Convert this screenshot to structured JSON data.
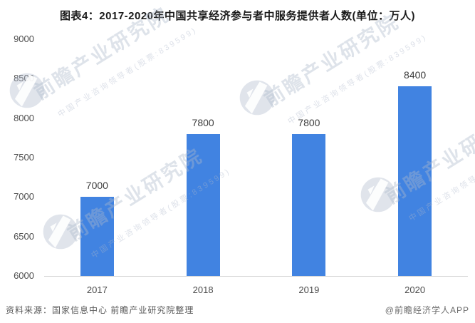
{
  "title": "图表4：2017-2020年中国共享经济参与者中服务提供者人数(单位：万人)",
  "chart_data": {
    "type": "bar",
    "categories": [
      "2017",
      "2018",
      "2019",
      "2020"
    ],
    "values": [
      7000,
      7800,
      7800,
      8400
    ],
    "title": "图表4：2017-2020年中国共享经济参与者中服务提供者人数(单位：万人)",
    "xlabel": "",
    "ylabel": "",
    "ylim": [
      6000,
      9000
    ],
    "yticks": [
      6000,
      6500,
      7000,
      7500,
      8000,
      8500,
      9000
    ],
    "grid": false,
    "legend": "none",
    "value_labels": [
      7000,
      7800,
      7800,
      8400
    ],
    "bar_color": "#4183e1"
  },
  "footer": {
    "source": "资料来源：国家信息中心 前瞻产业研究院整理",
    "credit": "@前瞻经济学人APP"
  },
  "watermark": {
    "big_text": "前瞻产业研究院",
    "small_text": "中国产业咨询领导者(股票:839599)",
    "color": "#adb8cb"
  }
}
